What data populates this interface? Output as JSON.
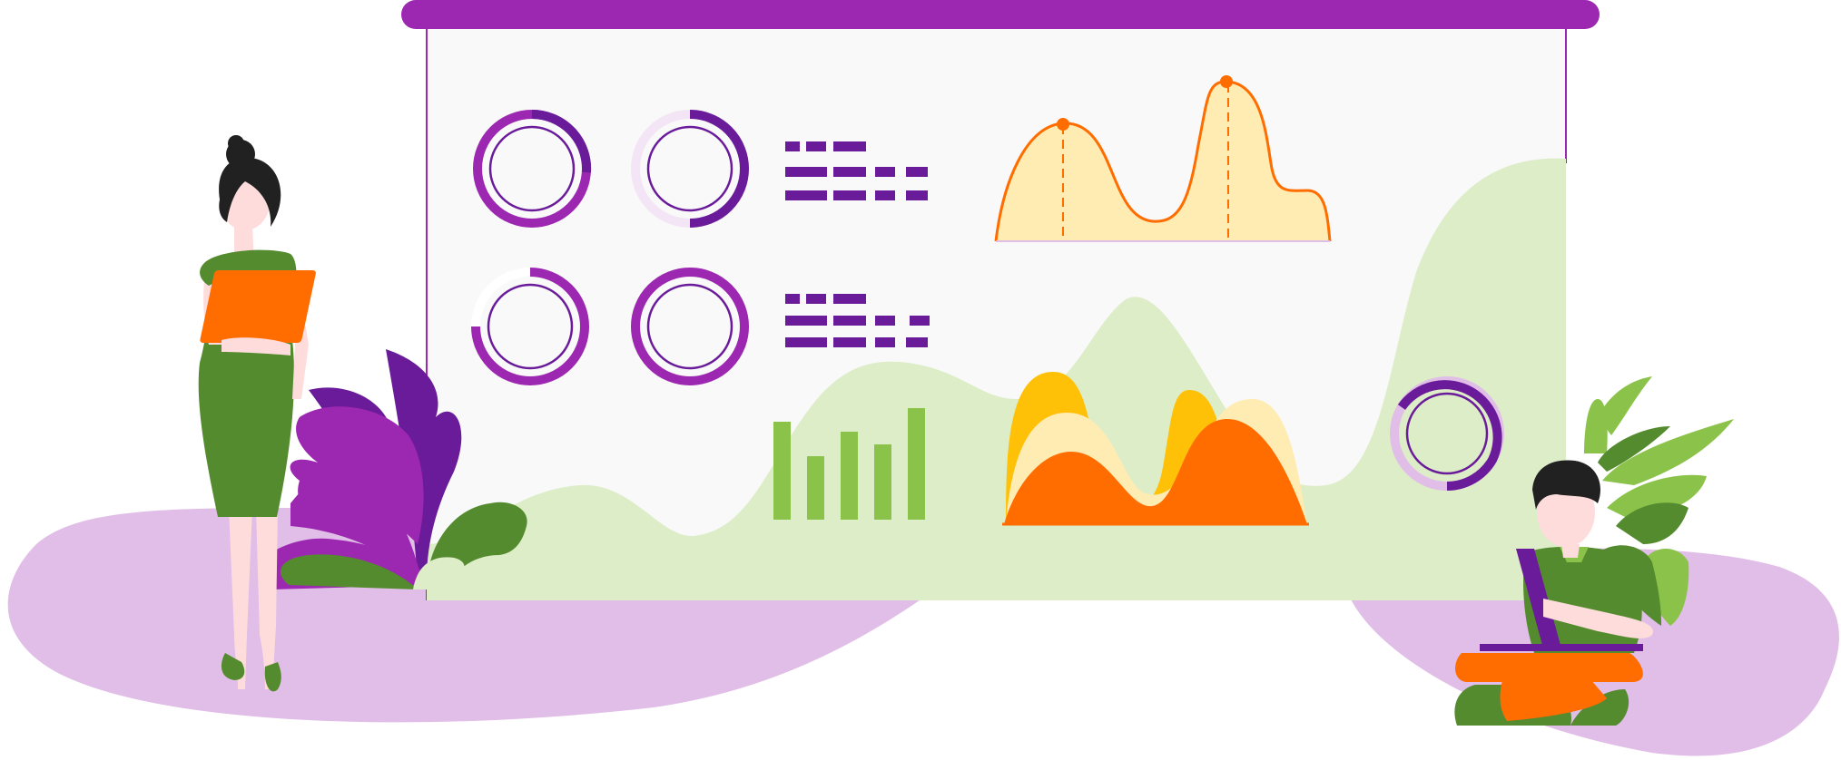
{
  "colors": {
    "purple": "#9C27B0",
    "dark_purple": "#6A1B9A",
    "lilac": "#E1BEE7",
    "board": "#F9F9F9",
    "green": "#558B2F",
    "light_green": "#8BC34A",
    "pale_green": "#DCEDC8",
    "orange": "#FF6D00",
    "amber": "#FFC107",
    "cream": "#FFECB3",
    "skin": "#FFDCDC",
    "hair": "#212121"
  },
  "icons": {
    "donut_charts": [
      "donut-chart-icon",
      "donut-chart-icon",
      "donut-chart-icon",
      "donut-chart-icon",
      "donut-chart-icon"
    ],
    "text_lines": [
      "text-lines-icon",
      "text-lines-icon"
    ],
    "line_chart": "line-chart-icon",
    "bar_chart": "bar-chart-icon",
    "area_chart": "area-chart-icon",
    "people": [
      "woman-with-tablet",
      "man-with-laptop"
    ],
    "plants": [
      "purple-plant",
      "green-plant"
    ]
  },
  "donut_levels": [
    0.8,
    0.6,
    0.75,
    1.0,
    0.7
  ],
  "bar_levels": [
    0.85,
    0.55,
    0.8,
    0.65,
    1.0
  ]
}
